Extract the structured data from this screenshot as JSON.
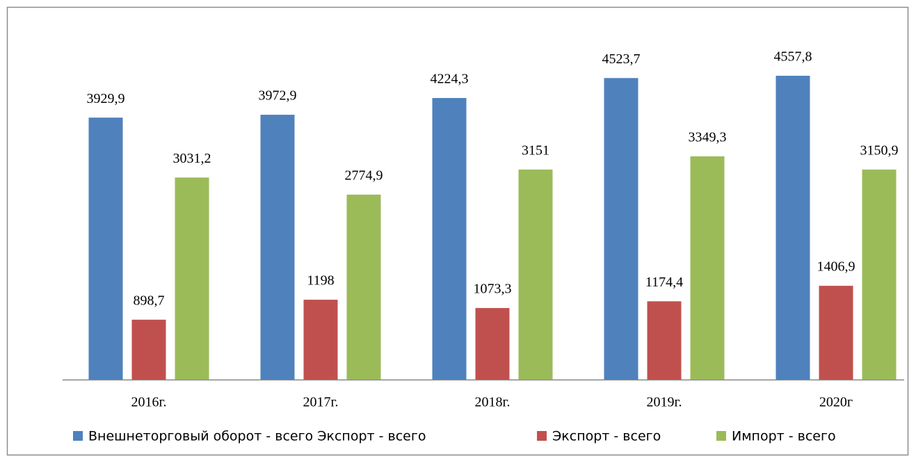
{
  "chart_data": {
    "type": "bar",
    "categories": [
      "2016г.",
      "2017г.",
      "2018г.",
      "2019г.",
      "2020г"
    ],
    "series": [
      {
        "name": "Внешнеторговый оборот - всего Экспорт - всего",
        "color": "#4f81bd",
        "values": [
          3929.9,
          3972.9,
          4224.3,
          4523.7,
          4557.8
        ],
        "value_labels": [
          "3929,9",
          "3972,9",
          "4224,3",
          "4523,7",
          "4557,8"
        ]
      },
      {
        "name": "Экспорт - всего",
        "color": "#c0504d",
        "values": [
          898.7,
          1198,
          1073.3,
          1174.4,
          1406.9
        ],
        "value_labels": [
          "898,7",
          "1198",
          "1073,3",
          "1174,4",
          "1406,9"
        ]
      },
      {
        "name": "Импорт - всего",
        "color": "#9bbb59",
        "values": [
          3031.2,
          2774.9,
          3151,
          3349.3,
          3150.9
        ],
        "value_labels": [
          "3031,2",
          "2774,9",
          "3151",
          "3349,3",
          "3150,9"
        ]
      }
    ]
  }
}
